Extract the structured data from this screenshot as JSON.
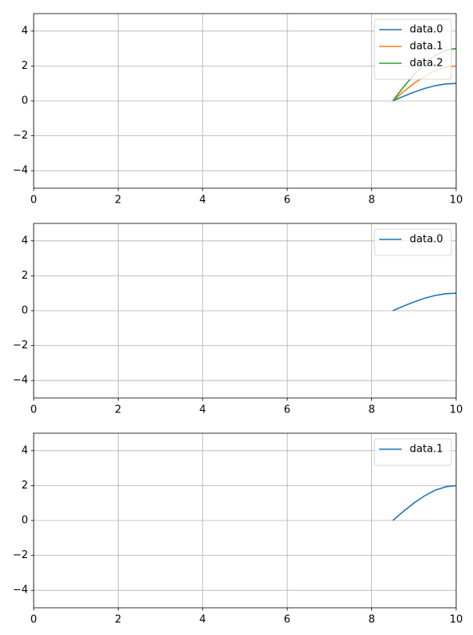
{
  "chart_data": [
    {
      "type": "line",
      "x": [
        8.5,
        8.75,
        9,
        9.25,
        9.5,
        9.75,
        10
      ],
      "series": [
        {
          "name": "data.0",
          "color": "#1f77b4",
          "values": [
            0,
            0.26,
            0.5,
            0.71,
            0.87,
            0.97,
            1
          ]
        },
        {
          "name": "data.1",
          "color": "#ff7f0e",
          "values": [
            0,
            0.52,
            1,
            1.41,
            1.73,
            1.93,
            2
          ]
        },
        {
          "name": "data.2",
          "color": "#2ca02c",
          "values": [
            0,
            0.78,
            1.5,
            2.12,
            2.6,
            2.9,
            3
          ]
        }
      ],
      "xlim": [
        0,
        10
      ],
      "xticks": [
        0,
        2,
        4,
        6,
        8,
        10
      ],
      "ylim": [
        -5,
        5
      ],
      "yticks": [
        {
          "value": -4,
          "label": "−4"
        },
        {
          "value": -2,
          "label": "−2"
        },
        0,
        2,
        4
      ],
      "grid": true,
      "legend": "upper-right"
    },
    {
      "type": "line",
      "x": [
        8.5,
        8.75,
        9,
        9.25,
        9.5,
        9.75,
        10
      ],
      "series": [
        {
          "name": "data.0",
          "color": "#1f77b4",
          "values": [
            0,
            0.26,
            0.5,
            0.71,
            0.87,
            0.97,
            1
          ]
        }
      ],
      "xlim": [
        0,
        10
      ],
      "xticks": [
        0,
        2,
        4,
        6,
        8,
        10
      ],
      "ylim": [
        -5,
        5
      ],
      "yticks": [
        {
          "value": -4,
          "label": "−4"
        },
        {
          "value": -2,
          "label": "−2"
        },
        0,
        2,
        4
      ],
      "grid": true,
      "legend": "upper-right"
    },
    {
      "type": "line",
      "x": [
        8.5,
        8.75,
        9,
        9.25,
        9.5,
        9.75,
        10
      ],
      "series": [
        {
          "name": "data.1",
          "color": "#1f77b4",
          "values": [
            0,
            0.52,
            1,
            1.41,
            1.73,
            1.93,
            2
          ]
        }
      ],
      "xlim": [
        0,
        10
      ],
      "xticks": [
        0,
        2,
        4,
        6,
        8,
        10
      ],
      "ylim": [
        -5,
        5
      ],
      "yticks": [
        {
          "value": -4,
          "label": "−4"
        },
        {
          "value": -2,
          "label": "−2"
        },
        0,
        2,
        4
      ],
      "grid": true,
      "legend": "upper-right"
    }
  ]
}
